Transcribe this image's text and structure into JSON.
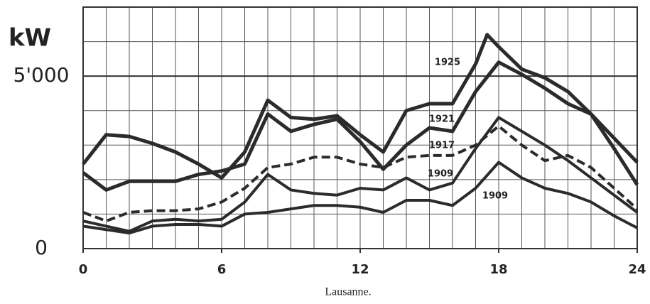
{
  "chart_data": {
    "type": "line",
    "caption": "Lausanne.",
    "ylabel": "kW",
    "xlim": [
      0,
      24
    ],
    "xticks": [
      0,
      6,
      12,
      18,
      24
    ],
    "xgrid_step": 1,
    "ylim": [
      0,
      7000
    ],
    "yticks": [
      0,
      {
        "value": 5000,
        "label": "5'000"
      }
    ],
    "ygrid_step": 1000,
    "grid": true,
    "series": [
      {
        "name": "1925",
        "color": "#2b2b2b",
        "dashed": false,
        "x": [
          0,
          1,
          2,
          3,
          4,
          5,
          6,
          7,
          8,
          9,
          10,
          11,
          12,
          13,
          14,
          15,
          16,
          17,
          17.5,
          18,
          19,
          20,
          21,
          22,
          23,
          24
        ],
        "values": [
          2450,
          3300,
          3250,
          3050,
          2800,
          2450,
          2050,
          2800,
          4300,
          3800,
          3750,
          3850,
          3300,
          2800,
          4000,
          4200,
          4200,
          5350,
          6200,
          5850,
          5200,
          4950,
          4550,
          3900,
          3200,
          2500
        ]
      },
      {
        "name": "1921",
        "color": "#2b2b2b",
        "dashed": false,
        "x": [
          0,
          1,
          2,
          3,
          4,
          5,
          6,
          7,
          8,
          9,
          10,
          11,
          12,
          13,
          14,
          15,
          16,
          17,
          18,
          19,
          20,
          21,
          22,
          23,
          24
        ],
        "values": [
          2200,
          1700,
          1950,
          1950,
          1950,
          2150,
          2250,
          2450,
          3900,
          3400,
          3600,
          3750,
          3100,
          2300,
          3000,
          3500,
          3400,
          4550,
          5400,
          5050,
          4650,
          4200,
          3900,
          2900,
          1850
        ]
      },
      {
        "name": "1917",
        "color": "#2b2b2b",
        "dashed": true,
        "x": [
          0,
          1,
          2,
          3,
          4,
          5,
          6,
          7,
          8,
          9,
          10,
          11,
          12,
          13,
          14,
          15,
          16,
          17,
          18,
          19,
          20,
          21,
          22,
          23,
          24
        ],
        "values": [
          1050,
          800,
          1050,
          1100,
          1100,
          1150,
          1350,
          1750,
          2350,
          2450,
          2650,
          2650,
          2450,
          2350,
          2650,
          2700,
          2700,
          3000,
          3550,
          3000,
          2550,
          2700,
          2350,
          1750,
          1150
        ]
      },
      {
        "name": "1909",
        "color": "#2b2b2b",
        "dashed": false,
        "x": [
          0,
          1,
          2,
          3,
          4,
          5,
          6,
          7,
          8,
          9,
          10,
          11,
          12,
          13,
          14,
          15,
          16,
          17,
          18,
          19,
          20,
          21,
          22,
          23,
          24
        ],
        "values": [
          800,
          650,
          500,
          800,
          850,
          800,
          850,
          1350,
          2150,
          1700,
          1600,
          1550,
          1750,
          1700,
          2050,
          1700,
          1900,
          2900,
          3800,
          3400,
          3000,
          2550,
          2050,
          1550,
          1050
        ]
      },
      {
        "name": "1909",
        "color": "#2b2b2b",
        "dashed": false,
        "x": [
          0,
          1,
          2,
          3,
          4,
          5,
          6,
          7,
          8,
          9,
          10,
          11,
          12,
          13,
          14,
          15,
          16,
          17,
          18,
          19,
          20,
          21,
          22,
          23,
          24
        ],
        "values": [
          650,
          550,
          450,
          650,
          700,
          700,
          650,
          1000,
          1050,
          1150,
          1250,
          1250,
          1200,
          1050,
          1400,
          1400,
          1250,
          1750,
          2500,
          2050,
          1750,
          1600,
          1350,
          950,
          600
        ]
      }
    ]
  }
}
